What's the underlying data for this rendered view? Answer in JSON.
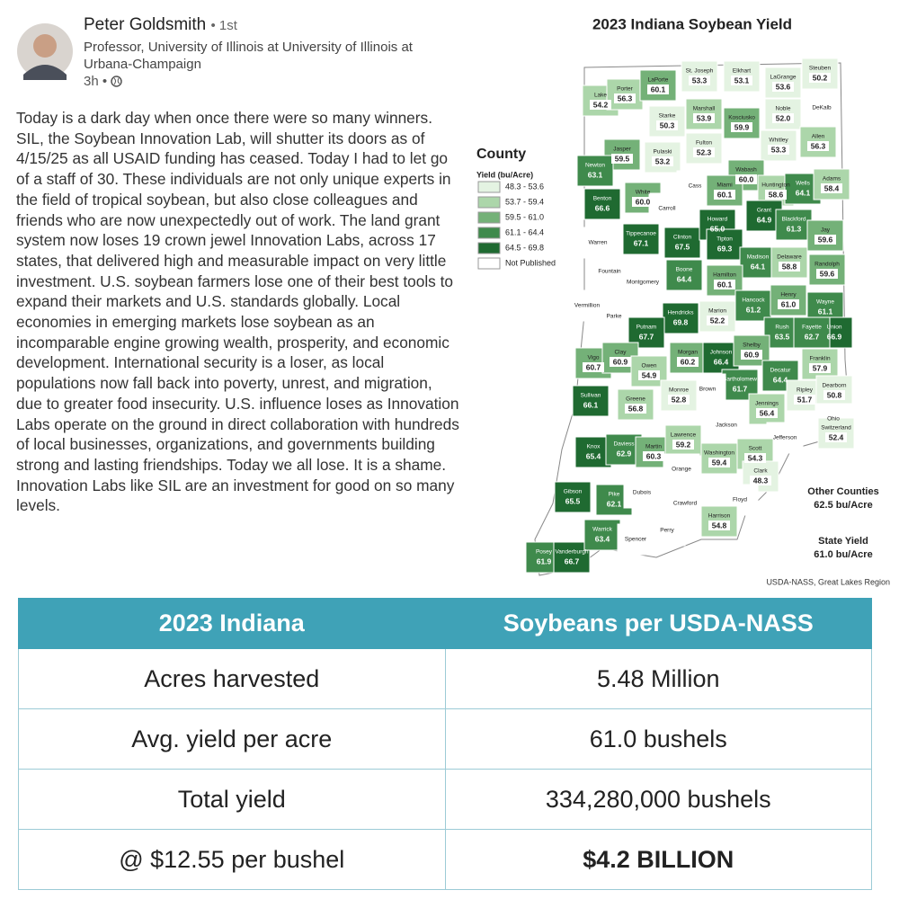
{
  "post": {
    "author": "Peter Goldsmith",
    "degree": "• 1st",
    "headline": "Professor, University of Illinois at University of Illinois at Urbana-Champaign",
    "time": "3h •",
    "body": "Today is a dark day when once there were so many winners. SIL, the Soybean Innovation Lab, will shutter its doors as of 4/15/25 as all USAID funding has ceased. Today I had to let go of a staff of 30. These individuals are not only unique experts in the field of tropical soybean, but also close colleagues and friends who are now unexpectedly out of work. The land grant system now loses 19 crown jewel Innovation Labs, across 17 states, that delivered high and measurable impact on very little investment. U.S. soybean farmers lose one of their best tools to expand their markets and U.S. standards globally. Local economies in emerging markets lose soybean as an incomparable engine growing wealth, prosperity, and economic development. International security is a loser, as local populations now fall back into poverty, unrest, and migration, due to greater food insecurity. U.S. influence loses as Innovation Labs operate on the ground in direct collaboration with hundreds of local businesses, organizations, and governments building strong and lasting friendships. Today we all lose. It is a shame. Innovation Labs like SIL are an investment for good on so many levels."
  },
  "map": {
    "title": "2023 Indiana Soybean Yield",
    "legend_title": "County",
    "legend_subtitle": "Yield (bu/Acre)",
    "legend": [
      {
        "label": "48.3 - 53.6",
        "color": "#e4f3e2"
      },
      {
        "label": "53.7 - 59.4",
        "color": "#acd6aa"
      },
      {
        "label": "59.5 - 61.0",
        "color": "#74b178"
      },
      {
        "label": "61.1 - 64.4",
        "color": "#3f8a4c"
      },
      {
        "label": "64.5 - 69.8",
        "color": "#1f6a31"
      },
      {
        "label": "Not Published",
        "color": "#ffffff"
      }
    ],
    "counties": [
      {
        "name": "Lake",
        "value": 54.2
      },
      {
        "name": "Porter",
        "value": 56.3
      },
      {
        "name": "LaPorte",
        "value": 60.1
      },
      {
        "name": "St. Joseph",
        "value": 53.3
      },
      {
        "name": "Elkhart",
        "value": 53.1
      },
      {
        "name": "LaGrange",
        "value": 53.6
      },
      {
        "name": "Steuben",
        "value": 50.2
      },
      {
        "name": "Noble",
        "value": 52,
        "value_label": "52.0"
      },
      {
        "name": "DeKalb",
        "value": null
      },
      {
        "name": "Starke",
        "value": 50.3
      },
      {
        "name": "Marshall",
        "value": 53.9
      },
      {
        "name": "Kosciusko",
        "value": 59.9
      },
      {
        "name": "Jasper",
        "value": 59.5
      },
      {
        "name": "Pulaski",
        "value": 53.2
      },
      {
        "name": "Fulton",
        "value": 52.3
      },
      {
        "name": "Whitley",
        "value": 53.3
      },
      {
        "name": "Allen",
        "value": 56.3
      },
      {
        "name": "Newton",
        "value": 63.1
      },
      {
        "name": "Wabash",
        "value": 60,
        "value_label": "60.0"
      },
      {
        "name": "Huntington",
        "value": 58.6
      },
      {
        "name": "Wells",
        "value": 64.1
      },
      {
        "name": "Adams",
        "value": 58.4
      },
      {
        "name": "Benton",
        "value": 66.6
      },
      {
        "name": "White",
        "value": 60,
        "value_label": "60.0"
      },
      {
        "name": "Cass",
        "value": null
      },
      {
        "name": "Miami",
        "value": 60.1
      },
      {
        "name": "Carroll",
        "value": null
      },
      {
        "name": "Grant",
        "value": 64.9
      },
      {
        "name": "Blackford",
        "value": 61.3
      },
      {
        "name": "Jay",
        "value": 59.6
      },
      {
        "name": "Warren",
        "value": null
      },
      {
        "name": "Tippecanoe",
        "value": 67.1
      },
      {
        "name": "Clinton",
        "value": 67.5
      },
      {
        "name": "Howard",
        "value": 65,
        "value_label": "65.0"
      },
      {
        "name": "Tipton",
        "value": 69.3
      },
      {
        "name": "Madison",
        "value": 64.1
      },
      {
        "name": "Delaware",
        "value": 58.8
      },
      {
        "name": "Randolph",
        "value": 59.6
      },
      {
        "name": "Fountain",
        "value": null
      },
      {
        "name": "Montgomery",
        "value": null
      },
      {
        "name": "Boone",
        "value": 64.4
      },
      {
        "name": "Hamilton",
        "value": 60.1
      },
      {
        "name": "Vermillion",
        "value": null
      },
      {
        "name": "Parke",
        "value": null
      },
      {
        "name": "Hendricks",
        "value": 69.8
      },
      {
        "name": "Marion",
        "value": 52.2
      },
      {
        "name": "Hancock",
        "value": 61.2
      },
      {
        "name": "Henry",
        "value": 61,
        "value_label": "61.0"
      },
      {
        "name": "Wayne",
        "value": 61.1
      },
      {
        "name": "Putnam",
        "value": 67.7
      },
      {
        "name": "Union",
        "value": 66.9
      },
      {
        "name": "Rush",
        "value": 63.5
      },
      {
        "name": "Fayette",
        "value": 62.7
      },
      {
        "name": "Vigo",
        "value": 60.7
      },
      {
        "name": "Clay",
        "value": 60.9
      },
      {
        "name": "Morgan",
        "value": 60.2
      },
      {
        "name": "Johnson",
        "value": 66.4
      },
      {
        "name": "Shelby",
        "value": 60.9
      },
      {
        "name": "Owen",
        "value": 54.9
      },
      {
        "name": "Franklin",
        "value": 57.9
      },
      {
        "name": "Decatur",
        "value": 64.4
      },
      {
        "name": "Bartholomew",
        "value": 61.7
      },
      {
        "name": "Brown",
        "value": null
      },
      {
        "name": "Monroe",
        "value": 52.8
      },
      {
        "name": "Sullivan",
        "value": 66.1
      },
      {
        "name": "Greene",
        "value": 56.8
      },
      {
        "name": "Jennings",
        "value": 56.4
      },
      {
        "name": "Ripley",
        "value": 51.7
      },
      {
        "name": "Dearborn",
        "value": 50.8
      },
      {
        "name": "Ohio",
        "value": null
      },
      {
        "name": "Switzerland",
        "value": 52.4
      },
      {
        "name": "Jackson",
        "value": null
      },
      {
        "name": "Jefferson",
        "value": null
      },
      {
        "name": "Knox",
        "value": 65.4
      },
      {
        "name": "Daviess",
        "value": 62.9
      },
      {
        "name": "Martin",
        "value": 60.3
      },
      {
        "name": "Lawrence",
        "value": 59.2
      },
      {
        "name": "Washington",
        "value": 59.4
      },
      {
        "name": "Scott",
        "value": 54.3
      },
      {
        "name": "Clark",
        "value": 48.3
      },
      {
        "name": "Orange",
        "value": null
      },
      {
        "name": "Gibson",
        "value": 65.5
      },
      {
        "name": "Pike",
        "value": 62.1
      },
      {
        "name": "Dubois",
        "value": null
      },
      {
        "name": "Crawford",
        "value": null
      },
      {
        "name": "Floyd",
        "value": null
      },
      {
        "name": "Harrison",
        "value": 54.8
      },
      {
        "name": "Posey",
        "value": 61.9
      },
      {
        "name": "Vanderburgh",
        "value": 66.7
      },
      {
        "name": "Warrick",
        "value": 63.4
      },
      {
        "name": "Spencer",
        "value": null
      },
      {
        "name": "Perry",
        "value": null
      }
    ],
    "other_label": "Other Counties",
    "other_value": "62.5 bu/Acre",
    "state_label": "State Yield",
    "state_value": "61.0 bu/Acre",
    "source": "USDA-NASS, Great Lakes Region"
  },
  "table": {
    "header": [
      "2023  Indiana",
      "Soybeans per USDA-NASS"
    ],
    "rows": [
      [
        "Acres harvested",
        "5.48 Million"
      ],
      [
        "Avg. yield per acre",
        "61.0 bushels"
      ],
      [
        "Total yield",
        "334,280,000 bushels"
      ],
      [
        "@ $12.55 per bushel",
        "$4.2 BILLION"
      ]
    ]
  }
}
